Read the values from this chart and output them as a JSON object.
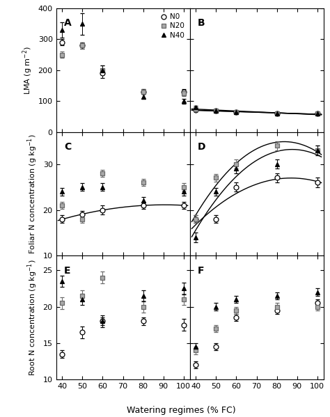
{
  "x": [
    40,
    50,
    60,
    80,
    100
  ],
  "panel_A_N0": [
    290,
    280,
    190,
    130,
    130
  ],
  "panel_A_N20": [
    250,
    280,
    200,
    130,
    125
  ],
  "panel_A_N40": [
    330,
    350,
    200,
    115,
    100
  ],
  "panel_A_N0_err": [
    10,
    10,
    15,
    8,
    8
  ],
  "panel_A_N20_err": [
    10,
    10,
    15,
    8,
    8
  ],
  "panel_A_N40_err": [
    25,
    35,
    15,
    8,
    8
  ],
  "panel_B_N0": [
    72,
    68,
    64,
    61,
    59
  ],
  "panel_B_N20": [
    73,
    68,
    64,
    61,
    59
  ],
  "panel_B_N40": [
    80,
    68,
    64,
    61,
    59
  ],
  "panel_B_N0_err": [
    3,
    2,
    2,
    2,
    2
  ],
  "panel_B_N20_err": [
    3,
    2,
    2,
    2,
    2
  ],
  "panel_B_N40_err": [
    4,
    2,
    2,
    2,
    2
  ],
  "panel_C_N0": [
    18,
    19,
    20,
    21,
    21
  ],
  "panel_C_N20": [
    21,
    18,
    28,
    26,
    25
  ],
  "panel_C_N40": [
    24,
    25,
    25,
    22,
    24
  ],
  "panel_C_N0_err": [
    0.8,
    0.8,
    1.0,
    0.8,
    0.8
  ],
  "panel_C_N20_err": [
    0.8,
    0.8,
    0.8,
    0.8,
    0.8
  ],
  "panel_C_N40_err": [
    0.8,
    0.8,
    0.8,
    0.8,
    0.8
  ],
  "panel_D_N0": [
    18,
    18,
    25,
    27,
    26
  ],
  "panel_D_N20": [
    18,
    27,
    30,
    34,
    33
  ],
  "panel_D_N40": [
    14,
    24,
    29,
    30,
    33
  ],
  "panel_D_N0_err": [
    0.8,
    0.8,
    1.0,
    1.0,
    1.0
  ],
  "panel_D_N20_err": [
    0.8,
    0.8,
    1.0,
    1.0,
    1.0
  ],
  "panel_D_N40_err": [
    1.0,
    0.8,
    1.0,
    1.0,
    1.0
  ],
  "panel_E_N0": [
    13.5,
    16.5,
    18.0,
    18.0,
    17.5
  ],
  "panel_E_N20": [
    20.5,
    21.5,
    24.0,
    20.0,
    21.0
  ],
  "panel_E_N40": [
    23.5,
    21.0,
    18.0,
    21.5,
    22.5
  ],
  "panel_E_N0_err": [
    0.5,
    0.8,
    0.5,
    0.5,
    0.8
  ],
  "panel_E_N20_err": [
    0.8,
    0.8,
    0.8,
    0.8,
    0.8
  ],
  "panel_E_N40_err": [
    0.8,
    0.8,
    0.8,
    0.8,
    0.8
  ],
  "panel_F_N0": [
    12.0,
    14.5,
    18.5,
    19.5,
    20.5
  ],
  "panel_F_N20": [
    14.0,
    17.0,
    19.5,
    20.0,
    20.0
  ],
  "panel_F_N40": [
    14.5,
    20.0,
    21.0,
    21.5,
    22.0
  ],
  "panel_F_N0_err": [
    0.5,
    0.5,
    0.5,
    0.5,
    0.5
  ],
  "panel_F_N20_err": [
    0.5,
    0.5,
    0.5,
    0.5,
    0.5
  ],
  "panel_F_N40_err": [
    0.5,
    0.5,
    0.5,
    0.5,
    0.5
  ],
  "xlabel": "Watering regimes (% FC)",
  "ylabel_LMA": "LMA (g m$^{-2}$)",
  "ylabel_FolN": "Foliar N concentration (g kg$^{-1}$)",
  "ylabel_RootN": "Root N concentration (g kg$^{-1}$)",
  "panel_A_ylim": [
    0,
    400
  ],
  "panel_A_yticks": [
    0,
    100,
    200,
    300,
    400
  ],
  "panel_B_ylim": [
    0,
    400
  ],
  "panel_B_yticks": [
    0,
    100,
    200,
    300,
    400
  ],
  "panel_CD_ylim": [
    10,
    37
  ],
  "panel_CD_yticks": [
    10,
    20,
    30
  ],
  "panel_EF_ylim": [
    10,
    27
  ],
  "panel_EF_yticks": [
    10,
    15,
    20,
    25
  ]
}
